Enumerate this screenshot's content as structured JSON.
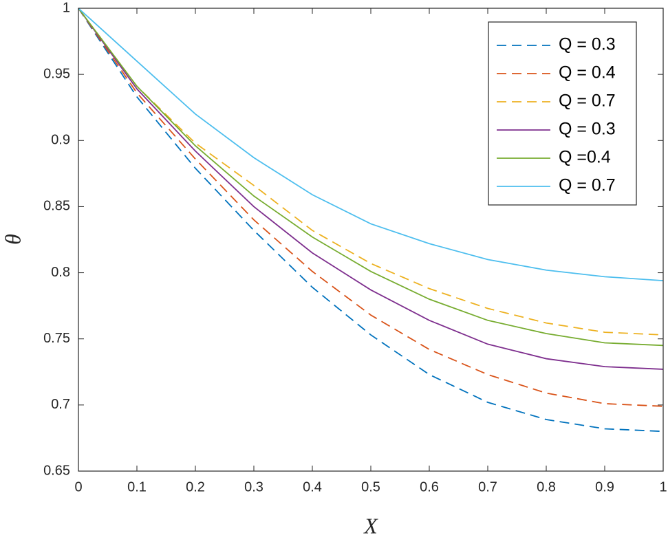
{
  "chart_data": {
    "type": "line",
    "x_label": "X",
    "y_label": "θ",
    "x": [
      0,
      0.1,
      0.2,
      0.3,
      0.4,
      0.5,
      0.6,
      0.7,
      0.8,
      0.9,
      1
    ],
    "xlim": [
      0,
      1
    ],
    "xticks": [
      0,
      0.1,
      0.2,
      0.3,
      0.4,
      0.5,
      0.6,
      0.7,
      0.8,
      0.9,
      1
    ],
    "ylim": [
      0.65,
      1
    ],
    "yticks": [
      0.65,
      0.7,
      0.75,
      0.8,
      0.85,
      0.9,
      0.95,
      1
    ],
    "legend": "northeast",
    "grid": false,
    "series": [
      {
        "name": "Q = 0.3",
        "color": "#0072BD",
        "style": "dashed",
        "values": [
          1,
          0.933,
          0.879,
          0.832,
          0.789,
          0.753,
          0.723,
          0.702,
          0.689,
          0.682,
          0.68
        ]
      },
      {
        "name": "Q = 0.4",
        "color": "#D95319",
        "style": "dashed",
        "values": [
          1,
          0.936,
          0.886,
          0.84,
          0.801,
          0.768,
          0.742,
          0.723,
          0.709,
          0.701,
          0.699
        ]
      },
      {
        "name": "Q = 0.7",
        "color": "#EDB120",
        "style": "dashed",
        "values": [
          1,
          0.941,
          0.898,
          0.866,
          0.832,
          0.807,
          0.788,
          0.773,
          0.762,
          0.755,
          0.753
        ]
      },
      {
        "name": "Q = 0.3",
        "color": "#7E2F8E",
        "style": "solid",
        "values": [
          1,
          0.939,
          0.892,
          0.85,
          0.815,
          0.787,
          0.764,
          0.746,
          0.735,
          0.729,
          0.727
        ]
      },
      {
        "name": "Q =0.4",
        "color": "#77AC30",
        "style": "solid",
        "values": [
          1,
          0.941,
          0.896,
          0.858,
          0.827,
          0.801,
          0.78,
          0.764,
          0.754,
          0.747,
          0.745
        ]
      },
      {
        "name": "Q = 0.7",
        "color": "#4DBEEE",
        "style": "solid",
        "values": [
          1,
          0.96,
          0.92,
          0.887,
          0.859,
          0.837,
          0.822,
          0.81,
          0.802,
          0.797,
          0.794
        ]
      }
    ]
  }
}
